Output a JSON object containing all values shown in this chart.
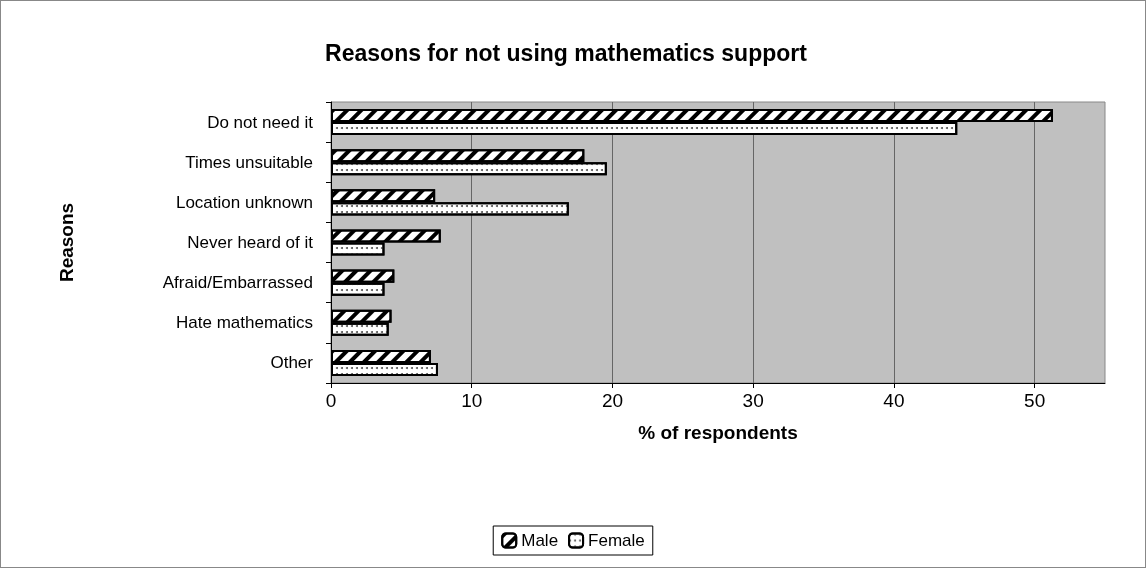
{
  "chart_data": {
    "type": "bar",
    "orientation": "horizontal",
    "title": "Reasons for not using mathematics support",
    "xlabel": "% of respondents",
    "ylabel": "Reasons",
    "categories": [
      "Do not need it",
      "Times unsuitable",
      "Location unknown",
      "Never heard of it",
      "Afraid/Embarrassed",
      "Hate mathematics",
      "Other"
    ],
    "series": [
      {
        "name": "Male",
        "color": "#ffffff",
        "values": [
          51.3,
          18.0,
          7.4,
          7.8,
          4.5,
          4.3,
          7.1
        ]
      },
      {
        "name": "Female",
        "color": "#ffffff",
        "values": [
          44.5,
          19.6,
          16.9,
          3.8,
          3.8,
          4.1,
          7.6
        ]
      }
    ],
    "xlim": [
      0,
      55
    ],
    "xticks": [
      0,
      10,
      20,
      30,
      40,
      50
    ],
    "grid": "x",
    "legend": "bottom"
  }
}
